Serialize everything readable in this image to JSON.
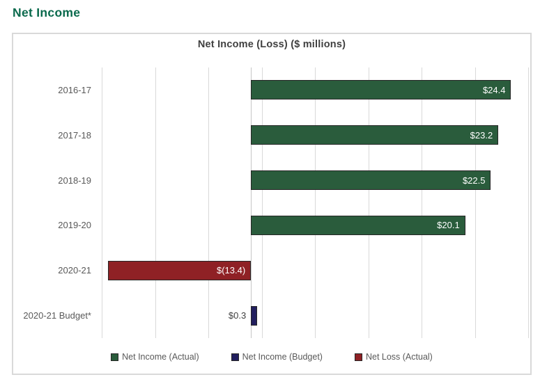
{
  "page": {
    "heading": "Net Income"
  },
  "chart_data": {
    "type": "bar",
    "orientation": "horizontal",
    "title": "Net Income (Loss) ($ millions)",
    "categories": [
      "2016-17",
      "2017-18",
      "2018-19",
      "2019-20",
      "2020-21",
      "2020-21 Budget*"
    ],
    "values": [
      24.4,
      23.2,
      22.5,
      20.1,
      -13.4,
      0.3
    ],
    "value_labels": [
      "$24.4",
      "$23.2",
      "$22.5",
      "$20.1",
      "$(13.4)",
      "$0.3"
    ],
    "series_key": [
      "actual_income",
      "actual_income",
      "actual_income",
      "actual_income",
      "actual_loss",
      "budget_income"
    ],
    "axis": {
      "min": -14,
      "max": 26,
      "major_unit": 5,
      "gridlines": true,
      "tick_labels_visible": false
    },
    "legend_position": "bottom",
    "legend": [
      {
        "key": "actual_income",
        "label": "Net Income (Actual)",
        "color": "#2a5c3c"
      },
      {
        "key": "budget_income",
        "label": "Net Income (Budget)",
        "color": "#221f5e"
      },
      {
        "key": "actual_loss",
        "label": "Net Loss (Actual)",
        "color": "#8f2125"
      }
    ],
    "colors": {
      "actual_income": "#2a5c3c",
      "budget_income": "#221f5e",
      "actual_loss": "#8f2125",
      "bar_border": "#262626",
      "heading_green": "#0b6a4d",
      "grid": "#d9d9d9",
      "title_text": "#404040",
      "label_text": "#595959"
    }
  }
}
